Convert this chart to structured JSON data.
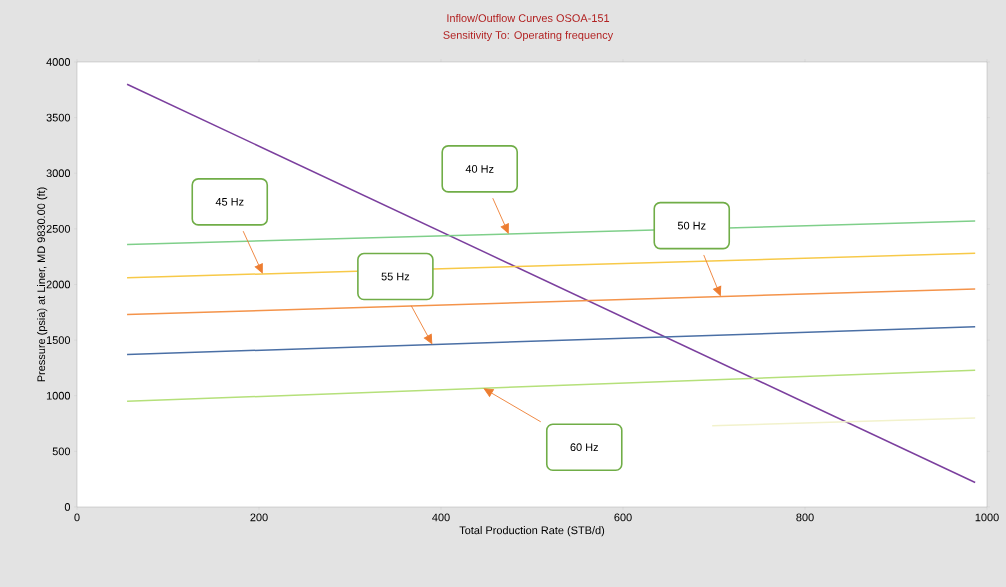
{
  "chart_data": {
    "type": "line",
    "title": "Inflow/Outflow Curves OSOA-151",
    "subtitle": "Sensitivity To: Operating frequency",
    "xlabel": "Total Production Rate (STB/d)",
    "ylabel": "Pressure (psia) at Liner, MD 9830.00 (ft)",
    "xlim": [
      0,
      1000
    ],
    "xticks": [
      0,
      200,
      400,
      600,
      800,
      1000
    ],
    "ylim": [
      0,
      4000
    ],
    "yticks": [
      0,
      500,
      1000,
      1500,
      2000,
      2500,
      3000,
      3500,
      4000
    ],
    "marker": "none",
    "line_style": "solid",
    "series": [
      {
        "color": "#7b3f9e",
        "x": [
          55,
          987
        ],
        "values": [
          3800,
          220
        ]
      },
      {
        "color": "#7fcf8a",
        "x": [
          55,
          987
        ],
        "values": [
          2360,
          2570
        ]
      },
      {
        "color": "#f7c948",
        "x": [
          55,
          987
        ],
        "values": [
          2060,
          2280
        ]
      },
      {
        "color": "#f4934a",
        "x": [
          55,
          987
        ],
        "values": [
          1730,
          1960
        ]
      },
      {
        "color": "#4a6fa5",
        "x": [
          55,
          987
        ],
        "values": [
          1370,
          1620
        ]
      },
      {
        "color": "#b5e07a",
        "x": [
          55,
          987
        ],
        "values": [
          950,
          1230
        ]
      },
      {
        "color": "#f2f2cc",
        "x": [
          698,
          987
        ],
        "values": [
          730,
          800
        ]
      }
    ],
    "annotations": [
      "40 Hz",
      "45 Hz",
      "55 Hz",
      "50 Hz",
      "60 Hz"
    ]
  }
}
